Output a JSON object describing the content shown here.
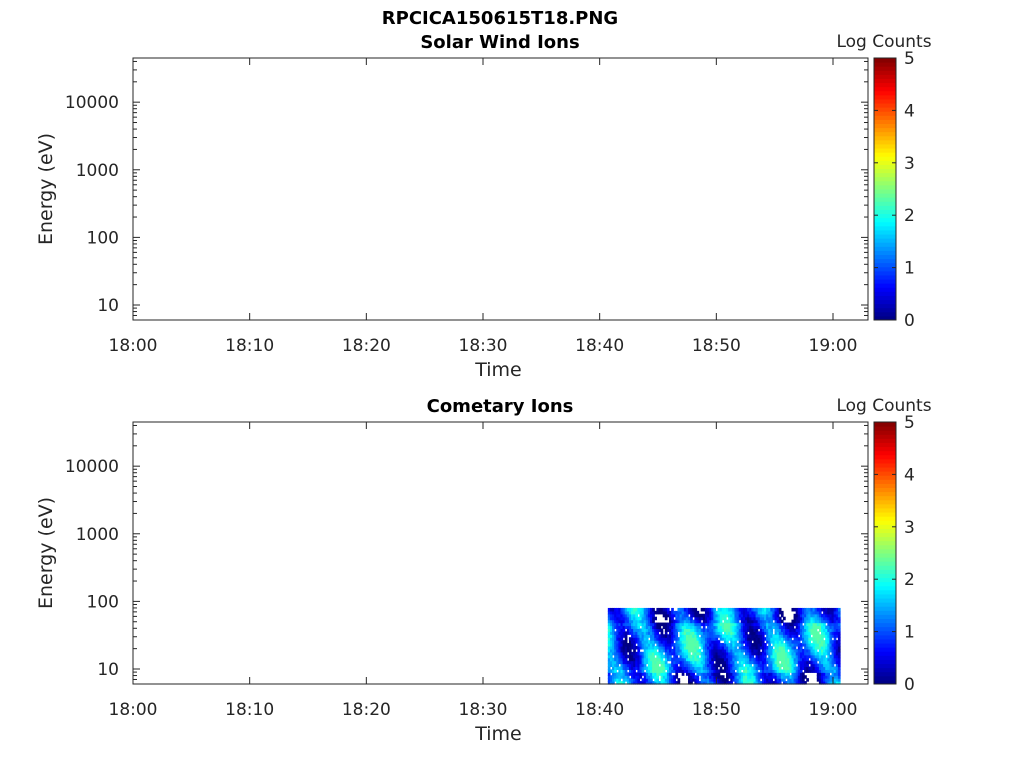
{
  "figure_title": "RPCICA150615T18.PNG",
  "chart_data": [
    {
      "type": "heatmap",
      "title": "Solar Wind Ions",
      "xlabel": "Time",
      "ylabel": "Energy (eV)",
      "y_scale": "log",
      "x_ticks": [
        "18:00",
        "18:10",
        "18:20",
        "18:30",
        "18:40",
        "18:50",
        "19:00"
      ],
      "y_ticks": [
        "10",
        "100",
        "1000",
        "10000"
      ],
      "x_range": [
        "18:00",
        "19:03"
      ],
      "y_range_eV": [
        6,
        45000
      ],
      "colorbar": {
        "label": "Log Counts",
        "ticks": [
          "0",
          "1",
          "2",
          "3",
          "4",
          "5"
        ],
        "range": [
          0,
          5
        ],
        "colormap": "jet"
      },
      "data": []
    },
    {
      "type": "heatmap",
      "title": "Cometary Ions",
      "xlabel": "Time",
      "ylabel": "Energy (eV)",
      "y_scale": "log",
      "x_ticks": [
        "18:00",
        "18:10",
        "18:20",
        "18:30",
        "18:40",
        "18:50",
        "19:00"
      ],
      "y_ticks": [
        "10",
        "100",
        "1000",
        "10000"
      ],
      "x_range": [
        "18:00",
        "19:03"
      ],
      "y_range_eV": [
        6,
        45000
      ],
      "colorbar": {
        "label": "Log Counts",
        "ticks": [
          "0",
          "1",
          "2",
          "3",
          "4",
          "5"
        ],
        "range": [
          0,
          5
        ],
        "colormap": "jet"
      },
      "data": {
        "time_start": "18:40",
        "time_end": "19:00",
        "energy_max_eV": 80,
        "energy_min_eV": 6,
        "log_counts_range": [
          0,
          2.2
        ],
        "description_of_values": "log counts mostly 0-2, peaks about 2 at 20-60 eV"
      }
    }
  ]
}
